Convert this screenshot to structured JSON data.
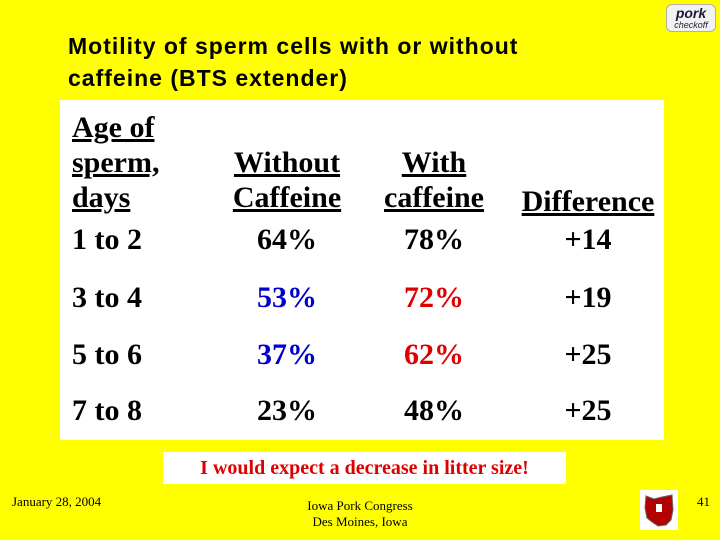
{
  "slide": {
    "logo": {
      "top": "pork",
      "bottom": "checkoff"
    },
    "title_lines": [
      "Motility of sperm cells with or without",
      "caffeine (BTS extender)"
    ],
    "table": {
      "header": {
        "age": [
          "Age of",
          "sperm,",
          "days"
        ],
        "without": [
          "Without",
          "Caffeine"
        ],
        "with": [
          "With",
          "caffeine"
        ],
        "difference": [
          "Difference"
        ]
      },
      "rows": [
        {
          "age": "1 to 2",
          "without": "64%",
          "with": "78%",
          "difference": "+14"
        },
        {
          "age": "3 to 4",
          "without": "53%",
          "with": "72%",
          "difference": "+19"
        },
        {
          "age": "5 to 6",
          "without": "37%",
          "with": "62%",
          "difference": "+25"
        },
        {
          "age": "7 to 8",
          "without": "23%",
          "with": "48%",
          "difference": "+25"
        }
      ]
    },
    "note": "I would expect a decrease in litter size!",
    "footer": {
      "date": "January 28, 2004",
      "event_lines": [
        "Iowa Pork Congress",
        "Des Moines, Iowa"
      ],
      "page": "41"
    },
    "colors": {
      "background": "#ffff00",
      "highlight_blue": "#0000cc",
      "highlight_red": "#dd0000"
    }
  }
}
